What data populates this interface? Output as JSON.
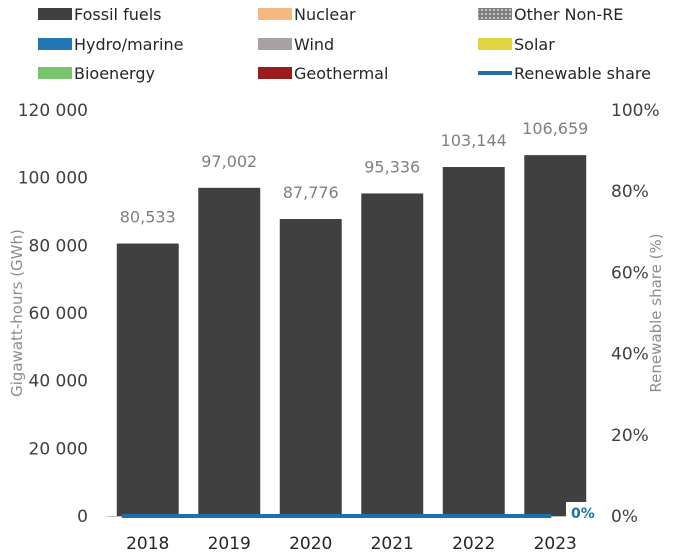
{
  "chart_data": {
    "type": "bar",
    "title": "",
    "categories": [
      "2018",
      "2019",
      "2020",
      "2021",
      "2022",
      "2023"
    ],
    "series": [
      {
        "name": "Fossil fuels",
        "values": [
          80533,
          97002,
          87776,
          95336,
          103144,
          106659
        ],
        "color": "#404040"
      },
      {
        "name": "Nuclear",
        "values": [
          0,
          0,
          0,
          0,
          0,
          0
        ],
        "color": "#f5b97f"
      },
      {
        "name": "Other Non-RE",
        "values": [
          0,
          0,
          0,
          0,
          0,
          0
        ],
        "color": "#7f7f7f",
        "pattern": "dotted"
      },
      {
        "name": "Hydro/marine",
        "values": [
          0,
          0,
          0,
          0,
          0,
          0
        ],
        "color": "#1f77b4"
      },
      {
        "name": "Wind",
        "values": [
          0,
          0,
          0,
          0,
          0,
          0
        ],
        "color": "#a9a0a3"
      },
      {
        "name": "Solar",
        "values": [
          0,
          0,
          0,
          0,
          0,
          0
        ],
        "color": "#e0d440"
      },
      {
        "name": "Bioenergy",
        "values": [
          0,
          0,
          0,
          0,
          0,
          0
        ],
        "color": "#78c36e"
      },
      {
        "name": "Geothermal",
        "values": [
          0,
          0,
          0,
          0,
          0,
          0
        ],
        "color": "#9b1c1c"
      }
    ],
    "line_series": {
      "name": "Renewable share",
      "axis": "secondary",
      "values": [
        0,
        0,
        0,
        0,
        0,
        0
      ],
      "color": "#1f6fa8"
    },
    "total_labels": [
      "80,533",
      "97,002",
      "87,776",
      "95,336",
      "103,144",
      "106,659"
    ],
    "share_label": "0%",
    "ylabel": "Gigawatt-hours (GWh)",
    "y2label": "Renewable share (%)",
    "ylim": [
      0,
      120000
    ],
    "yticks": [
      0,
      20000,
      40000,
      60000,
      80000,
      100000,
      120000
    ],
    "ytick_labels": [
      "0",
      "20 000",
      "40 000",
      "60 000",
      "80 000",
      "100 000",
      "120 000"
    ],
    "y2lim": [
      0,
      100
    ],
    "y2ticks": [
      0,
      20,
      40,
      60,
      80,
      100
    ],
    "y2tick_labels": [
      "0%",
      "20%",
      "40%",
      "60%",
      "80%",
      "100%"
    ],
    "legend_position": "top",
    "grid": false
  }
}
